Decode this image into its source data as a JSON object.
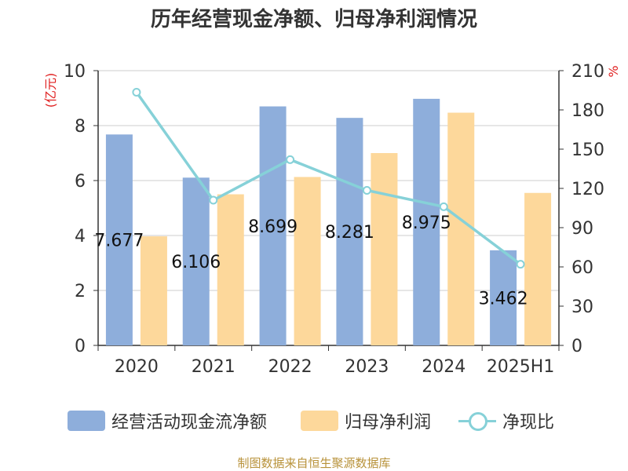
{
  "page_title": "历年经营现金净额、归母净利润情况",
  "source_note": "制图数据来自恒生聚源数据库",
  "colors": {
    "cash": "#8eaedb",
    "profit": "#fdd89b",
    "ratio": "#86d1d8",
    "axis_unit": "#e02020",
    "axis": "#333333",
    "grid": "#cccccc"
  },
  "chart_data": {
    "type": "bar",
    "title": "历年经营现金净额、归母净利润情况",
    "categories": [
      "2020",
      "2021",
      "2022",
      "2023",
      "2024",
      "2025H1"
    ],
    "y_left": {
      "unit": "(亿元)",
      "ylim": [
        0,
        10
      ],
      "ticks": [
        0,
        2,
        4,
        6,
        8,
        10
      ]
    },
    "y_right": {
      "unit": "%",
      "ylim": [
        0,
        210
      ],
      "ticks": [
        0,
        30,
        60,
        90,
        120,
        150,
        180,
        210
      ]
    },
    "grid": true,
    "legend_position": "bottom",
    "series": [
      {
        "name": "经营活动现金流净额",
        "kind": "bar",
        "axis": "left",
        "values": [
          7.677,
          6.106,
          8.699,
          8.281,
          8.975,
          3.462
        ],
        "labels": [
          "7.677",
          "6.106",
          "8.699",
          "8.281",
          "8.975",
          "3.462"
        ]
      },
      {
        "name": "归母净利润",
        "kind": "bar",
        "axis": "left",
        "values": [
          3.97,
          5.5,
          6.13,
          7.0,
          8.47,
          5.55
        ]
      },
      {
        "name": "净现比",
        "kind": "line",
        "axis": "right",
        "values": [
          193.5,
          111,
          142,
          118.5,
          106,
          62
        ]
      }
    ]
  }
}
